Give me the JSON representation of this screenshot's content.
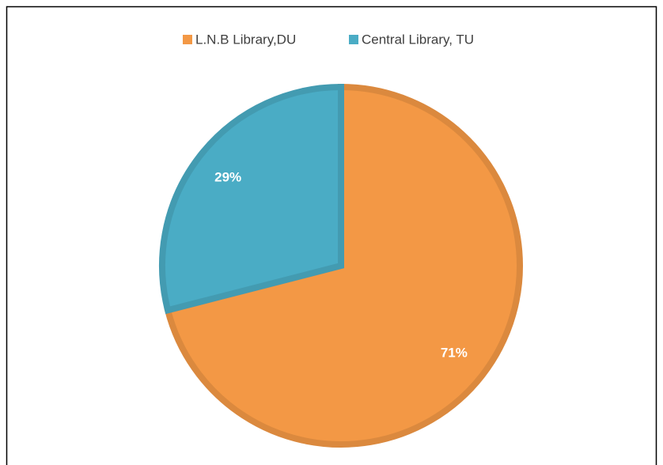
{
  "chart_data": {
    "type": "pie",
    "categories": [
      "L.N.B Library,DU",
      "Central Library, TU"
    ],
    "values": [
      71,
      29
    ],
    "value_labels": [
      "71%",
      "29%"
    ],
    "colors": [
      "#f39845",
      "#4aacc5"
    ],
    "legend": "top"
  }
}
